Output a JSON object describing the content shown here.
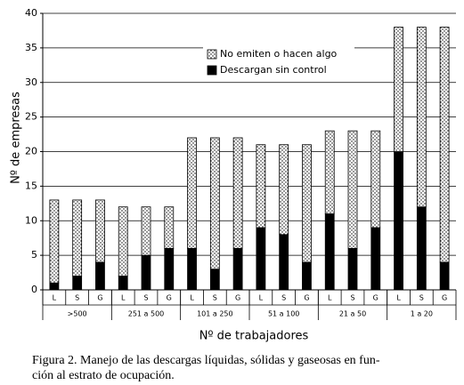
{
  "chart_data": {
    "type": "stacked_bar",
    "ylabel": "Nº de empresas",
    "xlabel": "Nº de trabajadores",
    "categories": [
      "L",
      "S",
      "G",
      "L",
      "S",
      "G",
      "L",
      "S",
      "G",
      "L",
      "S",
      "G",
      "L",
      "S",
      "G",
      "L",
      "S",
      "G"
    ],
    "groups": [
      ">500",
      "251 a 500",
      "101 a 250",
      "51 a 100",
      "21 a 50",
      "1 a 20"
    ],
    "series": [
      {
        "name": "Descargan sin control",
        "color": "#000000",
        "values": [
          1,
          2,
          4,
          2,
          5,
          6,
          6,
          3,
          6,
          9,
          8,
          4,
          11,
          6,
          9,
          20,
          12,
          4
        ]
      },
      {
        "name": "No emiten o hacen algo",
        "color": "#ffffff",
        "hatch": "dots",
        "values": [
          12,
          11,
          9,
          10,
          7,
          6,
          16,
          19,
          16,
          12,
          13,
          17,
          12,
          17,
          14,
          18,
          26,
          34
        ]
      }
    ],
    "ylim": [
      0,
      40
    ],
    "yticks": [
      0,
      5,
      10,
      15,
      20,
      25,
      30,
      35,
      40
    ],
    "grid": true,
    "caption": [
      "Figura 2. Manejo de las descargas líquidas, sólidas y gaseosas en fun-",
      "ción al estrato de ocupación."
    ]
  }
}
